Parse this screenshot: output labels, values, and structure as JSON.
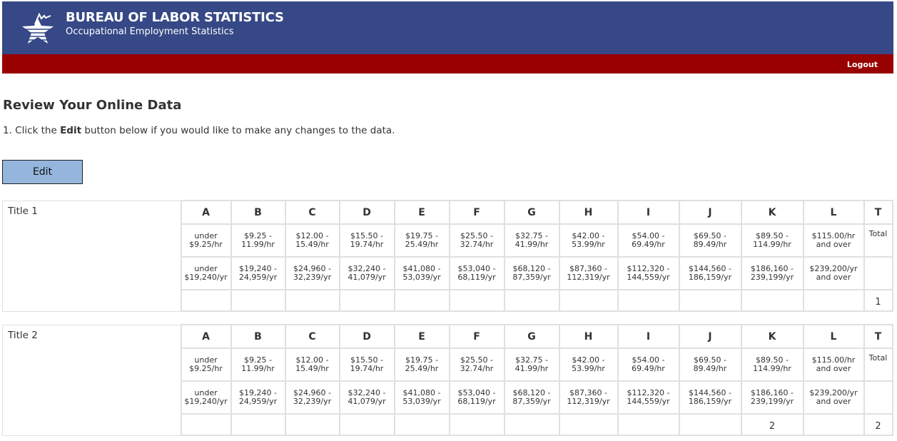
{
  "header": {
    "title": "BUREAU OF LABOR STATISTICS",
    "subtitle": "Occupational Employment Statistics",
    "logout_label": "Logout",
    "logo_icon": "bls-star-logo-icon",
    "colors": {
      "header_bg": "#364886",
      "nav_bg": "#990000",
      "edit_button": "#94b6dd"
    }
  },
  "page": {
    "heading": "Review Your Online Data",
    "instruction_prefix": "1. Click the ",
    "instruction_bold": "Edit",
    "instruction_suffix": " button below if you would like to make any changes to the data.",
    "edit_label": "Edit"
  },
  "columns": [
    "A",
    "B",
    "C",
    "D",
    "E",
    "F",
    "G",
    "H",
    "I",
    "J",
    "K",
    "L",
    "T"
  ],
  "hourly": [
    "under\n$9.25/hr",
    "$9.25 -\n11.99/hr",
    "$12.00 -\n15.49/hr",
    "$15.50 -\n19.74/hr",
    "$19.75 -\n25.49/hr",
    "$25.50 -\n32.74/hr",
    "$32.75 -\n41.99/hr",
    "$42.00 -\n53.99/hr",
    "$54.00 -\n69.49/hr",
    "$69.50 -\n89.49/hr",
    "$89.50 -\n114.99/hr",
    "$115.00/hr\nand over",
    "Total"
  ],
  "yearly": [
    "under\n$19,240/yr",
    "$19,240 -\n24,959/yr",
    "$24,960 -\n32,239/yr",
    "$32,240 -\n41,079/yr",
    "$41,080 -\n53,039/yr",
    "$53,040 -\n68,119/yr",
    "$68,120 -\n87,359/yr",
    "$87,360 -\n112,319/yr",
    "$112,320 -\n144,559/yr",
    "$144,560 -\n186,159/yr",
    "$186,160 -\n239,199/yr",
    "$239,200/yr\nand over",
    ""
  ],
  "tables": [
    {
      "title": "Title 1",
      "values": [
        "",
        "",
        "",
        "",
        "",
        "",
        "",
        "",
        "",
        "",
        "",
        "",
        "1"
      ]
    },
    {
      "title": "Title 2",
      "values": [
        "",
        "",
        "",
        "",
        "",
        "",
        "",
        "",
        "",
        "",
        "2",
        "",
        "2"
      ]
    }
  ]
}
